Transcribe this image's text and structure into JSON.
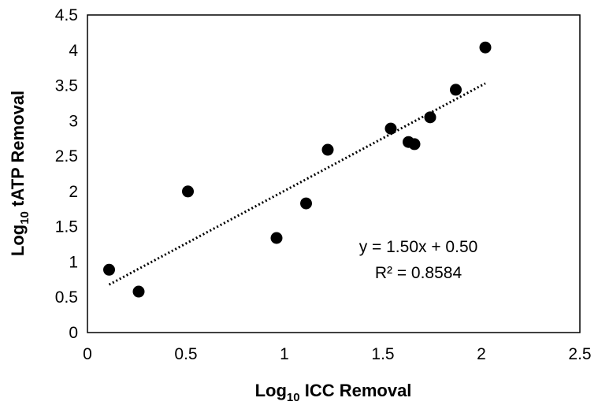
{
  "chart_data": {
    "type": "scatter",
    "x_label": [
      "Log",
      "10",
      " ICC Removal"
    ],
    "y_label": [
      "Log",
      "10",
      " tATP Removal"
    ],
    "x": [
      0.11,
      0.26,
      0.51,
      0.96,
      1.11,
      1.22,
      1.54,
      1.63,
      1.66,
      1.74,
      1.87,
      2.02
    ],
    "values": [
      0.89,
      0.58,
      2.0,
      1.34,
      1.83,
      2.59,
      2.89,
      2.7,
      2.67,
      3.05,
      3.44,
      4.04
    ],
    "color": "#000000",
    "xlim": [
      0,
      2.5
    ],
    "xticks": [
      0,
      0.5,
      1,
      1.5,
      2,
      2.5
    ],
    "ylim": [
      0,
      4.5
    ],
    "yticks": [
      0,
      0.5,
      1,
      1.5,
      2,
      2.5,
      3,
      3.5,
      4,
      4.5
    ],
    "trendline": {
      "equation": "y = 1.50x + 0.50",
      "r_squared": "R² = 0.8584"
    }
  }
}
